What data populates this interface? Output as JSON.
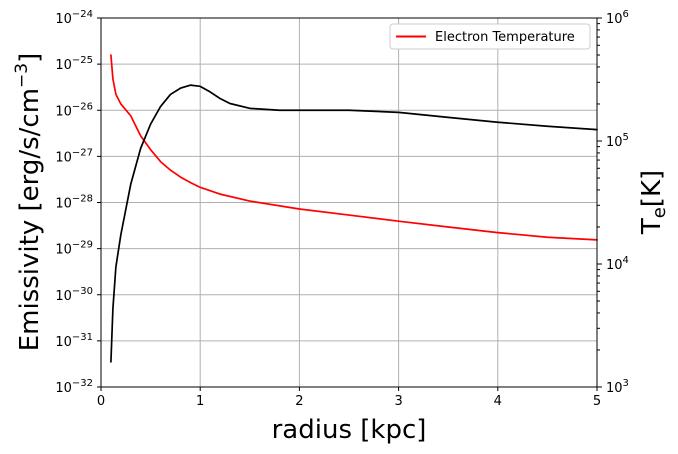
{
  "chart_data": {
    "type": "line",
    "xlabel": "radius [kpc]",
    "ylabel_left": "Emissivity [erg/s/cm^-3]",
    "ylabel_left_parts": {
      "base": "Emissivity [erg/s/cm",
      "exp": "−3",
      "close": "]"
    },
    "ylabel_right": "T_e[K]",
    "ylabel_right_parts": {
      "base": "T",
      "sub": "e",
      "rest": "[K]"
    },
    "xlim": [
      0,
      5
    ],
    "ylim_left": [
      1e-32,
      1e-24
    ],
    "ylim_right": [
      1000,
      1000000
    ],
    "yscale_left": "log",
    "yscale_right": "log",
    "grid": true,
    "legend_placement": "top-right",
    "x_ticks": [
      "0",
      "1",
      "2",
      "3",
      "4",
      "5"
    ],
    "y_left_ticks": [
      {
        "base": "10",
        "exp": "−32"
      },
      {
        "base": "10",
        "exp": "−31"
      },
      {
        "base": "10",
        "exp": "−30"
      },
      {
        "base": "10",
        "exp": "−29"
      },
      {
        "base": "10",
        "exp": "−28"
      },
      {
        "base": "10",
        "exp": "−27"
      },
      {
        "base": "10",
        "exp": "−26"
      },
      {
        "base": "10",
        "exp": "−25"
      },
      {
        "base": "10",
        "exp": "−24"
      }
    ],
    "y_right_ticks": [
      {
        "base": "10",
        "exp": "3"
      },
      {
        "base": "10",
        "exp": "4"
      },
      {
        "base": "10",
        "exp": "5"
      },
      {
        "base": "10",
        "exp": "6"
      }
    ],
    "series": [
      {
        "name": "Electron Temperature",
        "axis": "right",
        "color": "#ff0000",
        "in_legend": true,
        "points": [
          [
            0.1,
            500000
          ],
          [
            0.12,
            320000
          ],
          [
            0.15,
            240000
          ],
          [
            0.2,
            200000
          ],
          [
            0.3,
            160000
          ],
          [
            0.4,
            110000
          ],
          [
            0.5,
            85000
          ],
          [
            0.6,
            68000
          ],
          [
            0.7,
            58000
          ],
          [
            0.8,
            51000
          ],
          [
            0.9,
            46000
          ],
          [
            1.0,
            42000
          ],
          [
            1.2,
            37000
          ],
          [
            1.5,
            32500
          ],
          [
            2.0,
            28000
          ],
          [
            2.5,
            25000
          ],
          [
            3.0,
            22300
          ],
          [
            3.5,
            20000
          ],
          [
            4.0,
            18000
          ],
          [
            4.5,
            16500
          ],
          [
            5.0,
            15700
          ]
        ]
      },
      {
        "name": "",
        "axis": "left",
        "color": "#000000",
        "in_legend": false,
        "points": [
          [
            0.1,
            3.5e-32
          ],
          [
            0.12,
            5e-31
          ],
          [
            0.15,
            4e-30
          ],
          [
            0.2,
            2e-29
          ],
          [
            0.3,
            2.5e-28
          ],
          [
            0.4,
            1.5e-27
          ],
          [
            0.5,
            5e-27
          ],
          [
            0.6,
            1.2e-26
          ],
          [
            0.7,
            2.2e-26
          ],
          [
            0.8,
            3e-26
          ],
          [
            0.9,
            3.5e-26
          ],
          [
            1.0,
            3.3e-26
          ],
          [
            1.1,
            2.5e-26
          ],
          [
            1.2,
            1.8e-26
          ],
          [
            1.3,
            1.4e-26
          ],
          [
            1.5,
            1.1e-26
          ],
          [
            1.8,
            1e-26
          ],
          [
            2.0,
            1e-26
          ],
          [
            2.5,
            1e-26
          ],
          [
            3.0,
            9e-27
          ],
          [
            3.5,
            7e-27
          ],
          [
            4.0,
            5.5e-27
          ],
          [
            4.5,
            4.5e-27
          ],
          [
            5.0,
            3.8e-27
          ]
        ]
      }
    ]
  }
}
